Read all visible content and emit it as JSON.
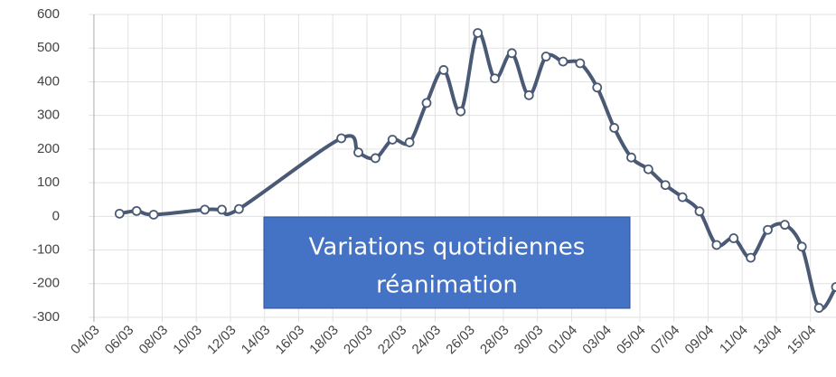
{
  "chart_data": {
    "type": "line",
    "x": [
      1,
      2,
      3,
      6,
      7,
      8,
      14,
      15,
      16,
      17,
      18,
      19,
      20,
      21,
      22,
      23,
      24,
      25,
      26,
      27,
      28,
      29,
      30,
      31,
      32,
      33,
      34,
      35,
      36,
      37,
      38,
      39,
      40,
      41,
      42,
      43
    ],
    "series": [
      {
        "color": "#4a5a75",
        "values": [
          8,
          16,
          5,
          20,
          20,
          22,
          232,
          190,
          173,
          228,
          220,
          337,
          435,
          312,
          545,
          410,
          485,
          360,
          475,
          460,
          455,
          383,
          263,
          175,
          140,
          93,
          57,
          15,
          -85,
          -65,
          -123,
          -40,
          -25,
          -90,
          -272,
          -210
        ]
      }
    ],
    "xlim": [
      -1,
      43
    ],
    "xticks": [
      {
        "value": -0.5,
        "label": "04/03"
      },
      {
        "value": 1.5,
        "label": "06/03"
      },
      {
        "value": 3.5,
        "label": "08/03"
      },
      {
        "value": 5.5,
        "label": "10/03"
      },
      {
        "value": 7.5,
        "label": "12/03"
      },
      {
        "value": 9.5,
        "label": "14/03"
      },
      {
        "value": 11.5,
        "label": "16/03"
      },
      {
        "value": 13.5,
        "label": "18/03"
      },
      {
        "value": 15.5,
        "label": "20/03"
      },
      {
        "value": 17.5,
        "label": "22/03"
      },
      {
        "value": 19.5,
        "label": "24/03"
      },
      {
        "value": 21.5,
        "label": "26/03"
      },
      {
        "value": 23.5,
        "label": "28/03"
      },
      {
        "value": 25.5,
        "label": "30/03"
      },
      {
        "value": 27.5,
        "label": "01/04"
      },
      {
        "value": 29.5,
        "label": "03/04"
      },
      {
        "value": 31.5,
        "label": "05/04"
      },
      {
        "value": 33.5,
        "label": "07/04"
      },
      {
        "value": 35.5,
        "label": "09/04"
      },
      {
        "value": 37.5,
        "label": "11/04"
      },
      {
        "value": 39.5,
        "label": "13/04"
      },
      {
        "value": 41.5,
        "label": "15/04"
      }
    ],
    "ylim": [
      -300,
      600
    ],
    "yticks": [
      -300,
      -200,
      -100,
      0,
      100,
      200,
      300,
      400,
      500,
      600
    ],
    "grid": true,
    "annotation": [
      "Variations quotidiennes",
      "réanimation"
    ],
    "annotation_color": "#4472c4"
  }
}
